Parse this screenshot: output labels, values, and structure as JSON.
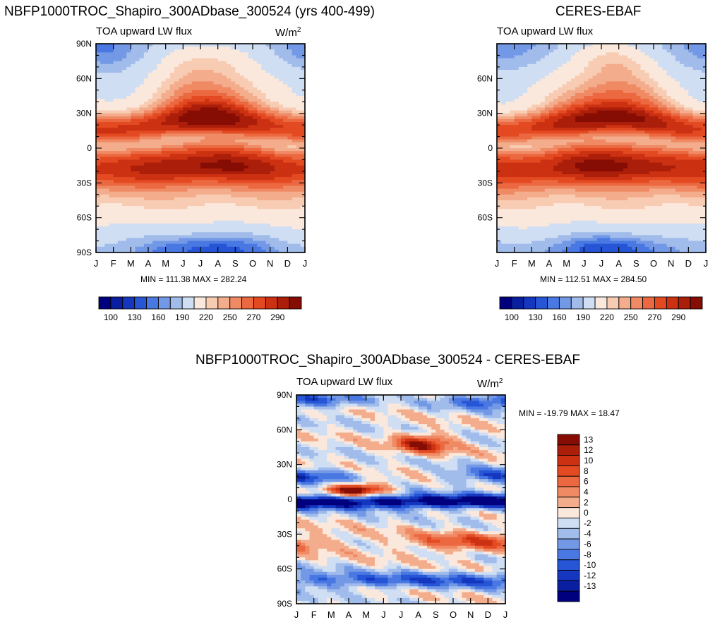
{
  "colors": {
    "scale17": [
      "#00007f",
      "#0a1fa0",
      "#1537c0",
      "#2655d6",
      "#4a78e3",
      "#7399e6",
      "#a1bceb",
      "#cfdef3",
      "#fbe8dc",
      "#f8ccb3",
      "#f4ad8c",
      "#ef8a64",
      "#eb6840",
      "#e34a22",
      "#cc3112",
      "#ab1e0a",
      "#860d04"
    ]
  },
  "chart_data": [
    {
      "id": "model",
      "type": "heatmap",
      "title": "NBFP1000TROC_Shapiro_300ADbase_300524 (yrs 400-499)",
      "left_label": "TOA upward LW flux",
      "units": "W/m",
      "units_sup": "2",
      "stats": "MIN = 111.38 MAX = 282.24",
      "x_ticks": [
        "J",
        "F",
        "M",
        "A",
        "M",
        "J",
        "J",
        "A",
        "S",
        "O",
        "N",
        "D",
        "J"
      ],
      "y_ticks": [
        "90N",
        "60N",
        "30N",
        "0",
        "30S",
        "60S",
        "90S"
      ],
      "colorbar_labels": [
        "100",
        "130",
        "160",
        "190",
        "220",
        "250",
        "270",
        "290"
      ],
      "ylim": [
        -90,
        90
      ],
      "min": 111.38,
      "max": 282.24
    },
    {
      "id": "obs",
      "type": "heatmap",
      "title": "CERES-EBAF",
      "left_label": "TOA upward LW flux",
      "stats": "MIN = 112.51 MAX = 284.50",
      "x_ticks": [
        "J",
        "F",
        "M",
        "A",
        "M",
        "J",
        "J",
        "A",
        "S",
        "O",
        "N",
        "D",
        "J"
      ],
      "y_ticks": [
        "60N",
        "30N",
        "0",
        "30S",
        "60S"
      ],
      "colorbar_labels": [
        "100",
        "130",
        "160",
        "190",
        "220",
        "250",
        "270",
        "290"
      ],
      "ylim": [
        -90,
        90
      ],
      "min": 112.51,
      "max": 284.5
    },
    {
      "id": "diff",
      "type": "heatmap",
      "title": "NBFP1000TROC_Shapiro_300ADbase_300524 - CERES-EBAF",
      "left_label": "TOA upward LW flux",
      "units": "W/m",
      "units_sup": "2",
      "stats": "MIN = -19.79 MAX =  18.47",
      "x_ticks": [
        "J",
        "F",
        "M",
        "A",
        "M",
        "J",
        "J",
        "A",
        "S",
        "O",
        "N",
        "D",
        "J"
      ],
      "y_ticks": [
        "90N",
        "60N",
        "30N",
        "0",
        "30S",
        "60S",
        "90S"
      ],
      "colorbar_labels": [
        "13",
        "12",
        "10",
        "8",
        "6",
        "4",
        "2",
        "0",
        "-2",
        "-4",
        "-6",
        "-8",
        "-10",
        "-12",
        "-13"
      ],
      "ylim": [
        -90,
        90
      ],
      "min": -19.79,
      "max": 18.47
    }
  ]
}
